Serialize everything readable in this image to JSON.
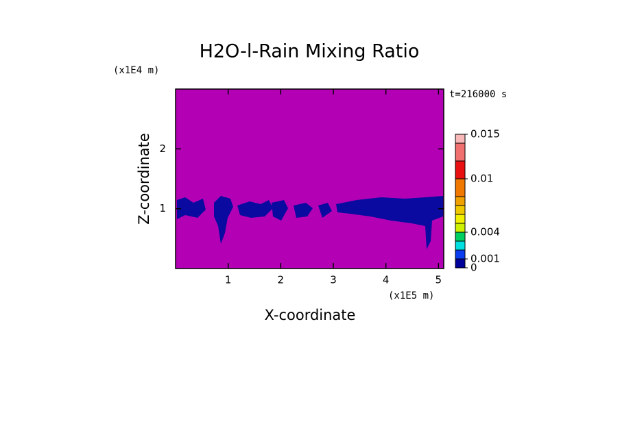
{
  "chart_data": {
    "type": "contour",
    "title": "H2O-l-Rain Mixing Ratio",
    "x_label": "X-coordinate",
    "y_label": "Z-coordinate",
    "x_unit": "(x1E5 m)",
    "y_unit": "(x1E4 m)",
    "annotation": "t=216000 s",
    "xlim": [
      0,
      5.1
    ],
    "ylim": [
      0,
      3
    ],
    "xticks": [
      1,
      2,
      3,
      4,
      5
    ],
    "yticks": [
      1,
      2
    ],
    "colorbar": {
      "levels": [
        0,
        0.001,
        0.002,
        0.003,
        0.004,
        0.005,
        0.006,
        0.007,
        0.008,
        0.01,
        0.012,
        0.014,
        0.015
      ],
      "colors": [
        "#00009a",
        "#0a3cf0",
        "#00e0e0",
        "#00d060",
        "#ccf000",
        "#f0f000",
        "#f0c800",
        "#f0a000",
        "#f07800",
        "#e81010",
        "#f07070",
        "#f8b8b8"
      ],
      "lim": [
        0,
        0.015
      ],
      "ticks": [
        0,
        0.001,
        0.004,
        0.01,
        0.015
      ]
    }
  }
}
